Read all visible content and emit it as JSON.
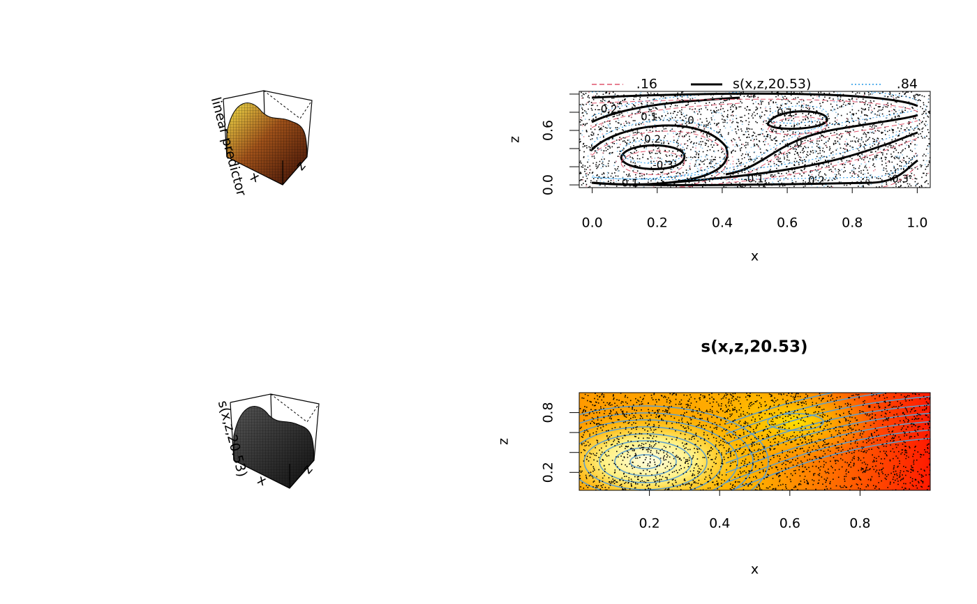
{
  "chart_data": [
    {
      "type": "surface",
      "zlabel": "linear predictor",
      "xlabel": "x",
      "ylabel": "z",
      "colored": true
    },
    {
      "type": "contour",
      "xlabel": "x",
      "ylabel": "z",
      "legend": [
        ".16",
        "s(x,z,20.53)",
        ".84"
      ],
      "legend_colors": [
        "#df536b",
        "#000000",
        "#2297e6"
      ],
      "xlim": [
        -0.04,
        1.04
      ],
      "ylim": [
        -0.03,
        1.03
      ],
      "xticks": [
        {
          "value": 0,
          "label": "0.0"
        },
        0.2,
        0.4,
        0.6,
        0.8,
        {
          "value": 1,
          "label": "1.0"
        }
      ],
      "yticks": [
        {
          "value": 0,
          "label": "0.0"
        },
        {
          "value": 0.2,
          "label": null
        },
        {
          "value": 0.4,
          "label": null
        },
        {
          "value": 0.6,
          "label": "0.6"
        },
        {
          "value": 0.8,
          "label": null
        },
        {
          "value": 1,
          "label": null
        }
      ],
      "contour_labels": [
        "-0.2",
        "0.1",
        "0",
        "0.2",
        "-0.3",
        "-0.1",
        "0.1",
        "0",
        "-0.1",
        "0.2",
        "0.3"
      ]
    },
    {
      "type": "surface",
      "zlabel": "s(x,z,20.53)",
      "xlabel": "x",
      "ylabel": "z",
      "colored": false
    },
    {
      "type": "heatmap",
      "title": "s(x,z,20.53)",
      "xlabel": "x",
      "ylabel": "z",
      "xlim": [
        0,
        1
      ],
      "ylim": [
        0.02,
        1.0
      ],
      "xticks": [
        0.2,
        0.4,
        0.6,
        0.8
      ],
      "yticks": [
        0.2,
        {
          "value": 0.4,
          "label": null
        },
        {
          "value": 0.6,
          "label": null
        },
        0.8
      ]
    }
  ]
}
